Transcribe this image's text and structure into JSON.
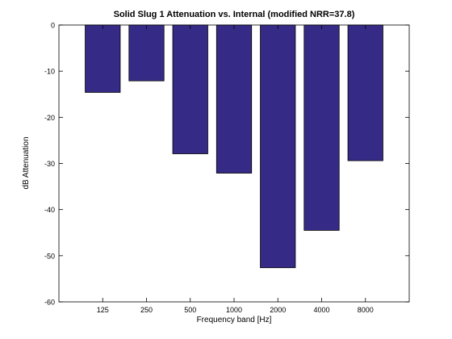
{
  "chart_data": {
    "type": "bar",
    "title": "Solid Slug 1 Attenuation vs. Internal (modified NRR=37.8)",
    "xlabel": "Frequency band [Hz]",
    "ylabel": "dB Attenuation",
    "categories": [
      "125",
      "250",
      "500",
      "1000",
      "2000",
      "4000",
      "8000"
    ],
    "values": [
      -14.6,
      -12.1,
      -27.9,
      -32.1,
      -52.6,
      -44.5,
      -29.4
    ],
    "ylim": [
      -60,
      0
    ],
    "yticks": [
      0,
      -10,
      -20,
      -30,
      -40,
      -50,
      -60
    ],
    "grid": false,
    "bar_color": "#352b86",
    "bar_edge_color": "#000000"
  }
}
